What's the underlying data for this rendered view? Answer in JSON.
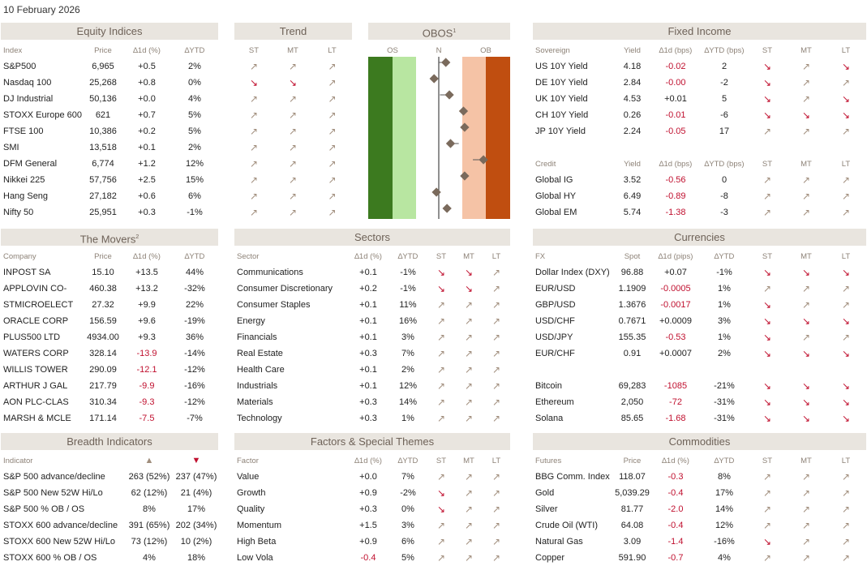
{
  "date": "10 February 2026",
  "colors": {
    "header_bg": "#e9e5df",
    "negative": "#c0102f",
    "arrow_up": "#a08d7c",
    "arrow_down": "#c0102f",
    "os_dark": "#3c7a1f",
    "os_light": "#b8e6a1",
    "ob_light": "#f5c3a6",
    "ob_dark": "#c04e10"
  },
  "icons": {
    "up": "↗",
    "down": "↘"
  },
  "equity": {
    "title": "Equity Indices",
    "headers": [
      "Index",
      "Price",
      "∆1d (%)",
      "∆YTD"
    ],
    "rows": [
      {
        "name": "S&P500",
        "price": "6,965",
        "d1": "+0.5",
        "ytd": "2%"
      },
      {
        "name": "Nasdaq 100",
        "price": "25,268",
        "d1": "+0.8",
        "ytd": "0%"
      },
      {
        "name": "DJ Industrial",
        "price": "50,136",
        "d1": "+0.0",
        "ytd": "4%"
      },
      {
        "name": "STOXX Europe 600",
        "price": "621",
        "d1": "+0.7",
        "ytd": "5%"
      },
      {
        "name": "FTSE 100",
        "price": "10,386",
        "d1": "+0.2",
        "ytd": "5%"
      },
      {
        "name": "SMI",
        "price": "13,518",
        "d1": "+0.1",
        "ytd": "2%"
      },
      {
        "name": "DFM General",
        "price": "6,774",
        "d1": "+1.2",
        "ytd": "12%"
      },
      {
        "name": "Nikkei 225",
        "price": "57,756",
        "d1": "+2.5",
        "ytd": "15%"
      },
      {
        "name": "Hang Seng",
        "price": "27,182",
        "d1": "+0.6",
        "ytd": "6%"
      },
      {
        "name": "Nifty 50",
        "price": "25,951",
        "d1": "+0.3",
        "ytd": "-1%"
      }
    ]
  },
  "trend": {
    "title": "Trend",
    "headers": [
      "ST",
      "MT",
      "LT"
    ],
    "rows": [
      [
        "up",
        "up",
        "up"
      ],
      [
        "down",
        "down",
        "up"
      ],
      [
        "up",
        "up",
        "up"
      ],
      [
        "up",
        "up",
        "up"
      ],
      [
        "up",
        "up",
        "up"
      ],
      [
        "up",
        "up",
        "up"
      ],
      [
        "up",
        "up",
        "up"
      ],
      [
        "up",
        "up",
        "up"
      ],
      [
        "up",
        "up",
        "up"
      ],
      [
        "up",
        "up",
        "up"
      ]
    ]
  },
  "obos": {
    "title": "OBOS",
    "footnote": "1",
    "labels": [
      "OS",
      "N",
      "OB"
    ],
    "points": [
      {
        "value": 0.3,
        "prev": 0.0
      },
      {
        "value": -0.2,
        "prev": 0.0
      },
      {
        "value": 0.45,
        "prev": 0.05
      },
      {
        "value": 1.05,
        "prev": 0.95
      },
      {
        "value": 1.1,
        "prev": 1.15
      },
      {
        "value": 0.5,
        "prev": 0.85
      },
      {
        "value": 1.9,
        "prev": 1.45
      },
      {
        "value": 1.1,
        "prev": 1.25
      },
      {
        "value": -0.1,
        "prev": -0.05
      },
      {
        "value": 0.35,
        "prev": 0.2
      }
    ]
  },
  "fixed_income": {
    "title": "Fixed Income",
    "sov_headers": [
      "Sovereign",
      "Yield",
      "∆1d (bps)",
      "∆YTD (bps)",
      "ST",
      "MT",
      "LT"
    ],
    "sov_rows": [
      {
        "name": "US 10Y Yield",
        "yield": "4.18",
        "d1": "-0.02",
        "ytd": "2",
        "st": "down",
        "mt": "up",
        "lt": "down"
      },
      {
        "name": "DE 10Y Yield",
        "yield": "2.84",
        "d1": "-0.00",
        "ytd": "-2",
        "st": "down",
        "mt": "up",
        "lt": "up"
      },
      {
        "name": "UK 10Y Yield",
        "yield": "4.53",
        "d1": "+0.01",
        "ytd": "5",
        "st": "down",
        "mt": "up",
        "lt": "down"
      },
      {
        "name": "CH 10Y Yield",
        "yield": "0.26",
        "d1": "-0.01",
        "ytd": "-6",
        "st": "down",
        "mt": "down",
        "lt": "down"
      },
      {
        "name": "JP 10Y Yield",
        "yield": "2.24",
        "d1": "-0.05",
        "ytd": "17",
        "st": "up",
        "mt": "up",
        "lt": "up"
      }
    ],
    "credit_headers": [
      "Credit",
      "Yield",
      "∆1d (bps)",
      "∆YTD (bps)",
      "ST",
      "MT",
      "LT"
    ],
    "credit_rows": [
      {
        "name": "Global IG",
        "yield": "3.52",
        "d1": "-0.56",
        "ytd": "0",
        "st": "up",
        "mt": "up",
        "lt": "up"
      },
      {
        "name": "Global HY",
        "yield": "6.49",
        "d1": "-0.89",
        "ytd": "-8",
        "st": "up",
        "mt": "up",
        "lt": "up"
      },
      {
        "name": "Global EM",
        "yield": "5.74",
        "d1": "-1.38",
        "ytd": "-3",
        "st": "up",
        "mt": "up",
        "lt": "up"
      }
    ]
  },
  "movers": {
    "title": "The Movers",
    "footnote": "2",
    "headers": [
      "Company",
      "Price",
      "∆1d (%)",
      "∆YTD"
    ],
    "rows": [
      {
        "name": "INPOST SA",
        "price": "15.10",
        "d1": "+13.5",
        "ytd": "44%"
      },
      {
        "name": "APPLOVIN CO-",
        "price": "460.38",
        "d1": "+13.2",
        "ytd": "-32%"
      },
      {
        "name": "STMICROELECT",
        "price": "27.32",
        "d1": "+9.9",
        "ytd": "22%"
      },
      {
        "name": "ORACLE CORP",
        "price": "156.59",
        "d1": "+9.6",
        "ytd": "-19%"
      },
      {
        "name": "PLUS500 LTD",
        "price": "4934.00",
        "d1": "+9.3",
        "ytd": "36%"
      },
      {
        "name": "WATERS CORP",
        "price": "328.14",
        "d1": "-13.9",
        "ytd": "-14%"
      },
      {
        "name": "WILLIS TOWER",
        "price": "290.09",
        "d1": "-12.1",
        "ytd": "-12%"
      },
      {
        "name": "ARTHUR J GAL",
        "price": "217.79",
        "d1": "-9.9",
        "ytd": "-16%"
      },
      {
        "name": "AON PLC-CLAS",
        "price": "310.34",
        "d1": "-9.3",
        "ytd": "-12%"
      },
      {
        "name": "MARSH & MCLE",
        "price": "171.14",
        "d1": "-7.5",
        "ytd": "-7%"
      }
    ]
  },
  "sectors": {
    "title": "Sectors",
    "headers": [
      "Sector",
      "∆1d (%)",
      "∆YTD",
      "ST",
      "MT",
      "LT"
    ],
    "rows": [
      {
        "name": "Communications",
        "d1": "+0.1",
        "ytd": "-1%",
        "st": "down",
        "mt": "down",
        "lt": "up"
      },
      {
        "name": "Consumer Discretionary",
        "d1": "+0.2",
        "ytd": "-1%",
        "st": "down",
        "mt": "down",
        "lt": "up"
      },
      {
        "name": "Consumer Staples",
        "d1": "+0.1",
        "ytd": "11%",
        "st": "up",
        "mt": "up",
        "lt": "up"
      },
      {
        "name": "Energy",
        "d1": "+0.1",
        "ytd": "16%",
        "st": "up",
        "mt": "up",
        "lt": "up"
      },
      {
        "name": "Financials",
        "d1": "+0.1",
        "ytd": "3%",
        "st": "up",
        "mt": "up",
        "lt": "up"
      },
      {
        "name": "Real Estate",
        "d1": "+0.3",
        "ytd": "7%",
        "st": "up",
        "mt": "up",
        "lt": "up"
      },
      {
        "name": "Health Care",
        "d1": "+0.1",
        "ytd": "2%",
        "st": "up",
        "mt": "up",
        "lt": "up"
      },
      {
        "name": "Industrials",
        "d1": "+0.1",
        "ytd": "12%",
        "st": "up",
        "mt": "up",
        "lt": "up"
      },
      {
        "name": "Materials",
        "d1": "+0.3",
        "ytd": "14%",
        "st": "up",
        "mt": "up",
        "lt": "up"
      },
      {
        "name": "Technology",
        "d1": "+0.3",
        "ytd": "1%",
        "st": "up",
        "mt": "up",
        "lt": "up"
      }
    ]
  },
  "currencies": {
    "title": "Currencies",
    "headers": [
      "FX",
      "Spot",
      "∆1d (pips)",
      "∆YTD",
      "ST",
      "MT",
      "LT"
    ],
    "rows": [
      {
        "name": "Dollar Index (DXY)",
        "spot": "96.88",
        "d1": "+0.07",
        "ytd": "-1%",
        "st": "down",
        "mt": "down",
        "lt": "down"
      },
      {
        "name": "EUR/USD",
        "spot": "1.1909",
        "d1": "-0.0005",
        "ytd": "1%",
        "st": "up",
        "mt": "up",
        "lt": "up"
      },
      {
        "name": "GBP/USD",
        "spot": "1.3676",
        "d1": "-0.0017",
        "ytd": "1%",
        "st": "down",
        "mt": "up",
        "lt": "up"
      },
      {
        "name": "USD/CHF",
        "spot": "0.7671",
        "d1": "+0.0009",
        "ytd": "3%",
        "st": "down",
        "mt": "down",
        "lt": "down"
      },
      {
        "name": "USD/JPY",
        "spot": "155.35",
        "d1": "-0.53",
        "ytd": "1%",
        "st": "down",
        "mt": "up",
        "lt": "up"
      },
      {
        "name": "EUR/CHF",
        "spot": "0.91",
        "d1": "+0.0007",
        "ytd": "2%",
        "st": "down",
        "mt": "down",
        "lt": "down"
      }
    ],
    "crypto_rows": [
      {
        "name": "Bitcoin",
        "spot": "69,283",
        "d1": "-1085",
        "ytd": "-21%",
        "st": "down",
        "mt": "down",
        "lt": "down"
      },
      {
        "name": "Ethereum",
        "spot": "2,050",
        "d1": "-72",
        "ytd": "-31%",
        "st": "down",
        "mt": "down",
        "lt": "down"
      },
      {
        "name": "Solana",
        "spot": "85.65",
        "d1": "-1.68",
        "ytd": "-31%",
        "st": "down",
        "mt": "down",
        "lt": "down"
      }
    ]
  },
  "breadth": {
    "title": "Breadth Indicators",
    "headers": [
      "Indicator",
      "▲",
      "▼"
    ],
    "rows": [
      {
        "name": "S&P 500 advance/decline",
        "up": "263 (52%)",
        "down": "237 (47%)"
      },
      {
        "name": "S&P 500 New 52W Hi/Lo",
        "up": "62 (12%)",
        "down": "21 (4%)"
      },
      {
        "name": "S&P 500 % OB / OS",
        "up": "8%",
        "down": "17%"
      },
      {
        "name": "STOXX 600 advance/decline",
        "up": "391 (65%)",
        "down": "202 (34%)"
      },
      {
        "name": "STOXX 600 New 52W Hi/Lo",
        "up": "73 (12%)",
        "down": "10 (2%)"
      },
      {
        "name": "STOXX 600 % OB / OS",
        "up": "4%",
        "down": "18%"
      }
    ]
  },
  "factors": {
    "title": "Factors & Special Themes",
    "headers": [
      "Factor",
      "∆1d (%)",
      "∆YTD",
      "ST",
      "MT",
      "LT"
    ],
    "rows": [
      {
        "name": "Value",
        "d1": "+0.0",
        "ytd": "7%",
        "st": "up",
        "mt": "up",
        "lt": "up"
      },
      {
        "name": "Growth",
        "d1": "+0.9",
        "ytd": "-2%",
        "st": "down",
        "mt": "up",
        "lt": "up"
      },
      {
        "name": "Quality",
        "d1": "+0.3",
        "ytd": "0%",
        "st": "down",
        "mt": "up",
        "lt": "up"
      },
      {
        "name": "Momentum",
        "d1": "+1.5",
        "ytd": "3%",
        "st": "up",
        "mt": "up",
        "lt": "up"
      },
      {
        "name": "High Beta",
        "d1": "+0.9",
        "ytd": "6%",
        "st": "up",
        "mt": "up",
        "lt": "up"
      },
      {
        "name": "Low Vola",
        "d1": "-0.4",
        "ytd": "5%",
        "st": "up",
        "mt": "up",
        "lt": "up"
      }
    ]
  },
  "commodities": {
    "title": "Commodities",
    "headers": [
      "Futures",
      "Price",
      "∆1d (%)",
      "∆YTD",
      "ST",
      "MT",
      "LT"
    ],
    "rows": [
      {
        "name": "BBG Comm. Index",
        "price": "118.07",
        "d1": "-0.3",
        "ytd": "8%",
        "st": "up",
        "mt": "up",
        "lt": "up"
      },
      {
        "name": "Gold",
        "price": "5,039.29",
        "d1": "-0.4",
        "ytd": "17%",
        "st": "up",
        "mt": "up",
        "lt": "up"
      },
      {
        "name": "Silver",
        "price": "81.77",
        "d1": "-2.0",
        "ytd": "14%",
        "st": "up",
        "mt": "up",
        "lt": "up"
      },
      {
        "name": "Crude Oil (WTI)",
        "price": "64.08",
        "d1": "-0.4",
        "ytd": "12%",
        "st": "up",
        "mt": "up",
        "lt": "up"
      },
      {
        "name": "Natural Gas",
        "price": "3.09",
        "d1": "-1.4",
        "ytd": "-16%",
        "st": "down",
        "mt": "up",
        "lt": "up"
      },
      {
        "name": "Copper",
        "price": "591.90",
        "d1": "-0.7",
        "ytd": "4%",
        "st": "up",
        "mt": "up",
        "lt": "up"
      }
    ]
  }
}
